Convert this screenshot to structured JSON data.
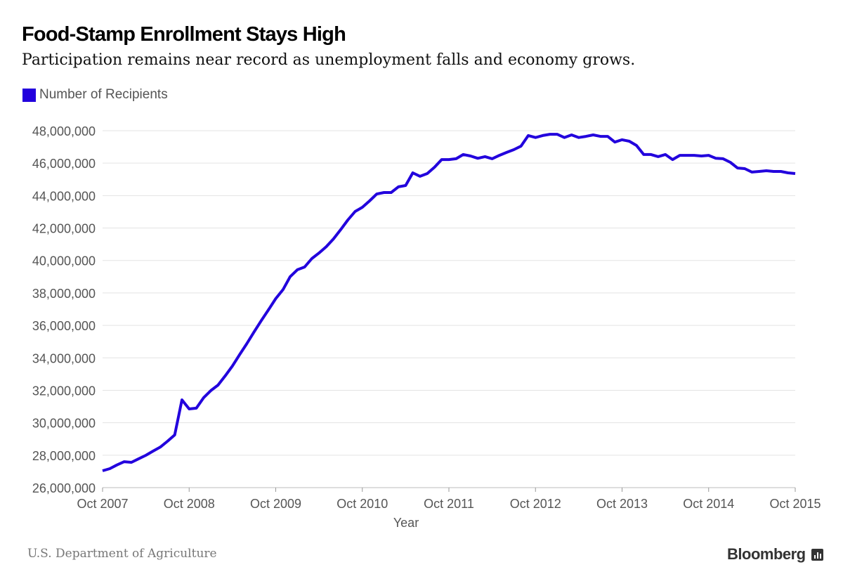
{
  "header": {
    "title": "Food-Stamp Enrollment Stays High",
    "subtitle": "Participation remains near record as unemployment falls and economy grows."
  },
  "footer": {
    "source": "U.S. Department of Agriculture",
    "brand": "Bloomberg"
  },
  "colors": {
    "series": "#2200dd",
    "grid": "#e3e3e3",
    "text": "#555555"
  },
  "chart_data": {
    "type": "line",
    "title": "Food-Stamp Enrollment Stays High",
    "xlabel": "Year",
    "ylabel": "",
    "x_start": "Oct 2007",
    "x_frequency": "monthly",
    "ylim": [
      26000000,
      48000000
    ],
    "grid": true,
    "legend_placement": "top-left",
    "y_ticks": [
      "26,000,000",
      "28,000,000",
      "30,000,000",
      "32,000,000",
      "34,000,000",
      "36,000,000",
      "38,000,000",
      "40,000,000",
      "42,000,000",
      "44,000,000",
      "46,000,000",
      "48,000,000"
    ],
    "x_ticks": [
      "Oct 2007",
      "Oct 2008",
      "Oct 2009",
      "Oct 2010",
      "Oct 2011",
      "Oct 2012",
      "Oct 2013",
      "Oct 2014",
      "Oct 2015"
    ],
    "series": [
      {
        "name": "Number of Recipients",
        "values": [
          27040000,
          27170000,
          27400000,
          27600000,
          27560000,
          27780000,
          27990000,
          28250000,
          28500000,
          28860000,
          29250000,
          31410000,
          30850000,
          30900000,
          31540000,
          31980000,
          32320000,
          32890000,
          33500000,
          34200000,
          34880000,
          35600000,
          36300000,
          36960000,
          37650000,
          38200000,
          39000000,
          39430000,
          39600000,
          40120000,
          40460000,
          40850000,
          41330000,
          41900000,
          42500000,
          43020000,
          43280000,
          43670000,
          44100000,
          44190000,
          44190000,
          44540000,
          44620000,
          45400000,
          45190000,
          45360000,
          45750000,
          46220000,
          46220000,
          46270000,
          46530000,
          46440000,
          46300000,
          46400000,
          46270000,
          46480000,
          46660000,
          46830000,
          47050000,
          47700000,
          47580000,
          47700000,
          47780000,
          47780000,
          47580000,
          47740000,
          47580000,
          47650000,
          47740000,
          47650000,
          47650000,
          47300000,
          47440000,
          47350000,
          47090000,
          46530000,
          46530000,
          46400000,
          46530000,
          46220000,
          46480000,
          46480000,
          46480000,
          46440000,
          46480000,
          46300000,
          46270000,
          46050000,
          45700000,
          45660000,
          45450000,
          45490000,
          45530000,
          45490000,
          45490000,
          45400000,
          45360000
        ]
      }
    ]
  }
}
